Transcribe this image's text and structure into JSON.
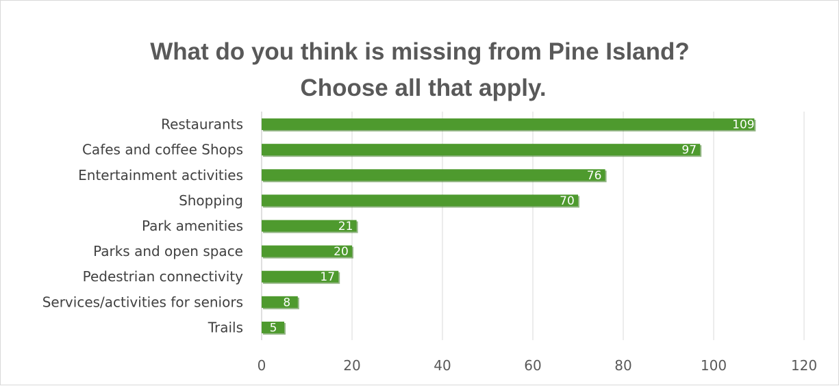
{
  "chart_data": {
    "type": "bar",
    "orientation": "horizontal",
    "title": "What do you think is missing from Pine Island? Choose all that apply.",
    "title_lines": [
      "What do you think is missing from Pine Island?",
      "Choose all that apply."
    ],
    "categories": [
      "Restaurants",
      "Cafes and coffee Shops",
      "Entertainment activities",
      "Shopping",
      "Park amenities",
      "Parks and open space",
      "Pedestrian connectivity",
      "Services/activities for seniors",
      "Trails"
    ],
    "values": [
      109,
      97,
      76,
      70,
      21,
      20,
      17,
      8,
      5
    ],
    "xlim": [
      0,
      120
    ],
    "xticks": [
      0,
      20,
      40,
      60,
      80,
      100,
      120
    ],
    "xtick_labels": [
      "0",
      "20",
      "40",
      "60",
      "80",
      "100",
      "120"
    ],
    "xlabel": "",
    "ylabel": "",
    "grid": "vertical",
    "legend": "none",
    "data_labels": "inside-end",
    "bar_color": "#4e9a2e",
    "bar_shadow_color": "#3c7a22"
  }
}
